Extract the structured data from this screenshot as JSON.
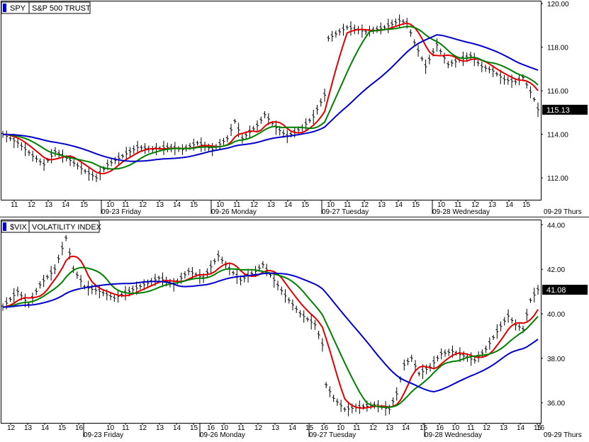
{
  "colors": {
    "background": "#ffffff",
    "frame": "#000000",
    "bars": "#000000",
    "ma_fast": "#e00000",
    "ma_mid": "#008000",
    "ma_slow": "#0000c8",
    "last_value_box": "#000000",
    "last_value_text": "#ffffff"
  },
  "chart_data": [
    {
      "type": "line",
      "symbol": "SPY",
      "name": "S&P 500 TRUST",
      "ylim": [
        111.0,
        120.1
      ],
      "yticks": [
        "120.00",
        "118.00",
        "116.00",
        "114.00",
        "112.00"
      ],
      "last_value": "115.13",
      "legend_icon": "blue-square-icon",
      "x_hour_ticks": [
        "11",
        "12",
        "13",
        "14",
        "15",
        "10",
        "11",
        "12",
        "13",
        "14",
        "15",
        "10",
        "11",
        "12",
        "13",
        "14",
        "15",
        "10",
        "11",
        "12",
        "13",
        "14",
        "15",
        "10",
        "11",
        "12",
        "13",
        "14",
        "15"
      ],
      "x_day_labels": [
        "09-23 Friday",
        "09-26 Monday",
        "09-27 Tuesday",
        "09-28 Wednesday",
        "09-29 Thurs"
      ],
      "price_anchors": [
        [
          0,
          114.0
        ],
        [
          4,
          113.6
        ],
        [
          8,
          113.0
        ],
        [
          11,
          112.6
        ],
        [
          14,
          113.2
        ],
        [
          18,
          112.8
        ],
        [
          22,
          112.3
        ],
        [
          25,
          112.0
        ],
        [
          28,
          112.6
        ],
        [
          32,
          113.0
        ],
        [
          36,
          113.4
        ],
        [
          40,
          113.3
        ],
        [
          44,
          113.4
        ],
        [
          48,
          113.3
        ],
        [
          52,
          113.6
        ],
        [
          56,
          113.3
        ],
        [
          60,
          113.8
        ],
        [
          62,
          114.6
        ],
        [
          64,
          113.8
        ],
        [
          68,
          114.4
        ],
        [
          70,
          114.9
        ],
        [
          73,
          114.3
        ],
        [
          76,
          113.9
        ],
        [
          80,
          114.3
        ],
        [
          83,
          114.8
        ],
        [
          86,
          115.8
        ],
        [
          87,
          118.4
        ],
        [
          92,
          118.9
        ],
        [
          97,
          118.7
        ],
        [
          102,
          118.9
        ],
        [
          106,
          119.2
        ],
        [
          108,
          119.1
        ],
        [
          110,
          118.2
        ],
        [
          113,
          117.1
        ],
        [
          116,
          118.1
        ],
        [
          119,
          117.2
        ],
        [
          122,
          117.4
        ],
        [
          125,
          117.6
        ],
        [
          128,
          117.1
        ],
        [
          131,
          116.9
        ],
        [
          134,
          116.5
        ],
        [
          137,
          116.4
        ],
        [
          139,
          116.6
        ],
        [
          142,
          115.6
        ],
        [
          143,
          115.13
        ]
      ],
      "vol_pattern": [
        0.3,
        0.5,
        0.2,
        0.6,
        0.4,
        0.35,
        0.55,
        0.25,
        0.45,
        0.3
      ],
      "bar_count": 144,
      "ma_periods": [
        6,
        12,
        30
      ],
      "series": [
        {
          "name": "",
          "color": "#e00000"
        },
        {
          "name": "",
          "color": "#008000"
        },
        {
          "name": "",
          "color": "#0000c8"
        }
      ]
    },
    {
      "type": "line",
      "symbol": "$VIX",
      "name": "VOLATILITY INDEX",
      "ylim": [
        35.1,
        44.2
      ],
      "yticks": [
        "44.00",
        "42.00",
        "40.00",
        "38.00",
        "36.00"
      ],
      "last_value": "41.08",
      "legend_icon": "blue-square-icon",
      "x_hour_ticks": [
        "12",
        "13",
        "14",
        "15",
        "16",
        "10",
        "11",
        "12",
        "13",
        "14",
        "15",
        "16",
        "10",
        "11",
        "12",
        "13",
        "14",
        "15",
        "16",
        "10",
        "11",
        "12",
        "13",
        "14",
        "15",
        "16",
        "10",
        "11",
        "12",
        "13",
        "14",
        "15",
        "16"
      ],
      "x_day_labels": [
        "09-23 Friday",
        "09-26 Monday",
        "09-27 Tuesday",
        "09-28 Wednesday",
        "09-29 Thurs"
      ],
      "price_anchors": [
        [
          0,
          40.3
        ],
        [
          4,
          41.0
        ],
        [
          7,
          40.4
        ],
        [
          10,
          41.3
        ],
        [
          14,
          42.0
        ],
        [
          17,
          43.4
        ],
        [
          19,
          42.0
        ],
        [
          22,
          41.2
        ],
        [
          26,
          41.0
        ],
        [
          30,
          40.7
        ],
        [
          34,
          41.0
        ],
        [
          38,
          41.3
        ],
        [
          42,
          41.6
        ],
        [
          46,
          41.3
        ],
        [
          50,
          41.9
        ],
        [
          54,
          41.6
        ],
        [
          58,
          42.6
        ],
        [
          61,
          42.0
        ],
        [
          64,
          41.5
        ],
        [
          68,
          41.9
        ],
        [
          70,
          42.2
        ],
        [
          73,
          41.5
        ],
        [
          76,
          40.8
        ],
        [
          80,
          40.0
        ],
        [
          84,
          39.5
        ],
        [
          86,
          38.6
        ],
        [
          87,
          36.8
        ],
        [
          89,
          36.2
        ],
        [
          92,
          35.7
        ],
        [
          96,
          35.8
        ],
        [
          100,
          35.9
        ],
        [
          104,
          35.7
        ],
        [
          106,
          36.4
        ],
        [
          108,
          37.7
        ],
        [
          110,
          38.0
        ],
        [
          112,
          37.3
        ],
        [
          115,
          37.6
        ],
        [
          118,
          38.2
        ],
        [
          121,
          38.3
        ],
        [
          124,
          38.1
        ],
        [
          127,
          37.9
        ],
        [
          130,
          38.4
        ],
        [
          133,
          39.2
        ],
        [
          136,
          39.9
        ],
        [
          138,
          39.5
        ],
        [
          140,
          39.3
        ],
        [
          142,
          40.6
        ],
        [
          144,
          41.08
        ]
      ],
      "vol_pattern": [
        0.3,
        0.5,
        0.2,
        0.6,
        0.4,
        0.35,
        0.55,
        0.25,
        0.45,
        0.3
      ],
      "bar_count": 145,
      "ma_periods": [
        6,
        12,
        30
      ],
      "series": [
        {
          "name": "",
          "color": "#e00000"
        },
        {
          "name": "",
          "color": "#008000"
        },
        {
          "name": "",
          "color": "#0000c8"
        }
      ]
    }
  ]
}
